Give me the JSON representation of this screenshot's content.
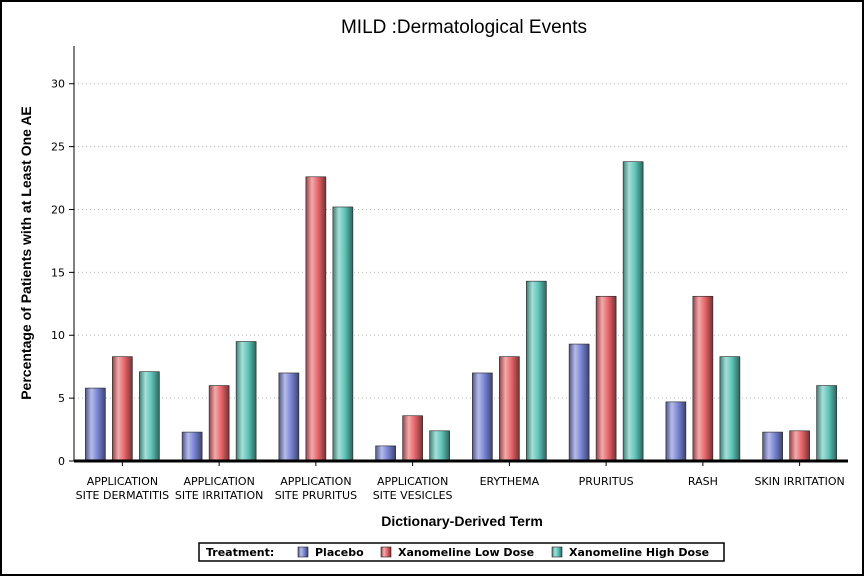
{
  "chart_data": {
    "type": "bar",
    "title": "MILD :Dermatological Events",
    "xlabel": "Dictionary-Derived Term",
    "ylabel": "Percentage of Patients with at Least One AE",
    "ylim": [
      0,
      33
    ],
    "yticks": [
      0,
      5,
      10,
      15,
      20,
      25,
      30
    ],
    "grid": "horizontal dotted",
    "legend_position": "bottom",
    "legend_title": "Treatment:",
    "categories": [
      [
        "APPLICATION",
        "SITE DERMATITIS"
      ],
      [
        "APPLICATION",
        "SITE IRRITATION"
      ],
      [
        "APPLICATION",
        "SITE PRURITUS"
      ],
      [
        "APPLICATION",
        "SITE VESICLES"
      ],
      [
        "ERYTHEMA"
      ],
      [
        "PRURITUS"
      ],
      [
        "RASH"
      ],
      [
        "SKIN IRRITATION"
      ]
    ],
    "series": [
      {
        "name": "Placebo",
        "color": "#7a86d6",
        "values": [
          5.8,
          2.3,
          7.0,
          1.2,
          7.0,
          9.3,
          4.7,
          2.3
        ]
      },
      {
        "name": "Xanomeline Low Dose",
        "color": "#e8666a",
        "values": [
          8.3,
          6.0,
          22.6,
          3.6,
          8.3,
          13.1,
          13.1,
          2.4
        ]
      },
      {
        "name": "Xanomeline High Dose",
        "color": "#5ec5b8",
        "values": [
          7.1,
          9.5,
          20.2,
          2.4,
          14.3,
          23.8,
          8.3,
          6.0
        ]
      }
    ]
  }
}
